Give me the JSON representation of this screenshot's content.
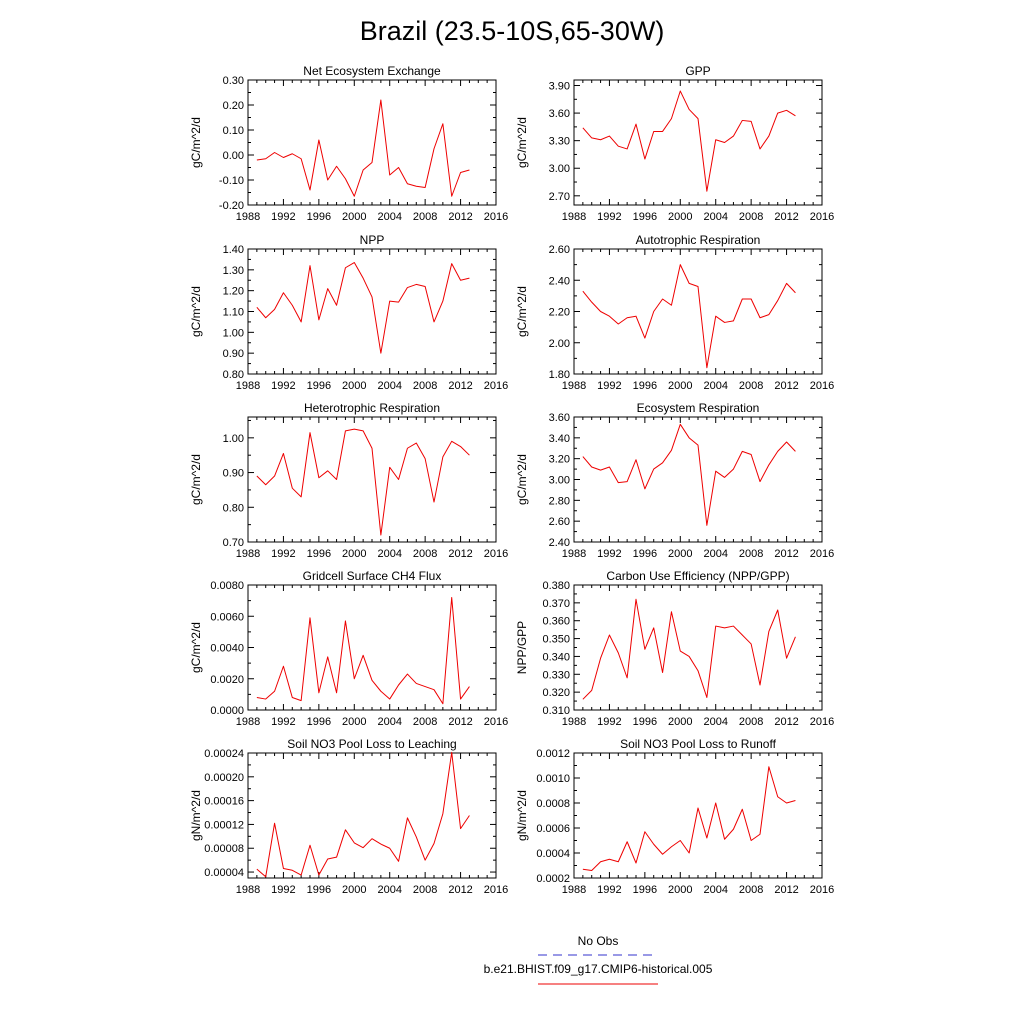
{
  "title": "Brazil (23.5-10S,65-30W)",
  "legend": {
    "entries": [
      {
        "label": "No Obs",
        "color": "#3333cc",
        "dash": "dashed"
      },
      {
        "label": "b.e21.BHIST.f09_g17.CMIP6-historical.005",
        "color": "#ee0000",
        "dash": "solid"
      }
    ]
  },
  "series_color": "#ee0000",
  "chart_data": [
    {
      "type": "line",
      "title": "Net Ecosystem Exchange",
      "ylabel": "gC/m^2/d",
      "xlim": [
        1988,
        2016
      ],
      "xticks": [
        1988,
        1992,
        1996,
        2000,
        2004,
        2008,
        2012,
        2016
      ],
      "ylim": [
        -0.2,
        0.3
      ],
      "yticks": [
        "-0.20",
        "-0.10",
        "0.00",
        "0.10",
        "0.20",
        "0.30"
      ],
      "x": [
        1989,
        1990,
        1991,
        1992,
        1993,
        1994,
        1995,
        1996,
        1997,
        1998,
        1999,
        2000,
        2001,
        2002,
        2003,
        2004,
        2005,
        2006,
        2007,
        2008,
        2009,
        2010,
        2011,
        2012,
        2013
      ],
      "series": [
        {
          "name": "b.e21.BHIST.f09_g17.CMIP6-historical.005",
          "values": [
            -0.02,
            -0.015,
            0.01,
            -0.01,
            0.005,
            -0.015,
            -0.14,
            0.06,
            -0.1,
            -0.045,
            -0.095,
            -0.165,
            -0.06,
            -0.03,
            0.22,
            -0.08,
            -0.05,
            -0.115,
            -0.125,
            -0.13,
            0.025,
            0.125,
            -0.165,
            -0.07,
            -0.06
          ]
        }
      ]
    },
    {
      "type": "line",
      "title": "GPP",
      "ylabel": "gC/m^2/d",
      "xlim": [
        1988,
        2016
      ],
      "xticks": [
        1988,
        1992,
        1996,
        2000,
        2004,
        2008,
        2012,
        2016
      ],
      "ylim": [
        2.6,
        3.96
      ],
      "yticks": [
        "2.70",
        "3.00",
        "3.30",
        "3.60",
        "3.90"
      ],
      "x": [
        1989,
        1990,
        1991,
        1992,
        1993,
        1994,
        1995,
        1996,
        1997,
        1998,
        1999,
        2000,
        2001,
        2002,
        2003,
        2004,
        2005,
        2006,
        2007,
        2008,
        2009,
        2010,
        2011,
        2012,
        2013
      ],
      "series": [
        {
          "name": "b.e21.BHIST.f09_g17.CMIP6-historical.005",
          "values": [
            3.44,
            3.33,
            3.31,
            3.35,
            3.24,
            3.21,
            3.48,
            3.1,
            3.4,
            3.4,
            3.54,
            3.84,
            3.64,
            3.54,
            2.75,
            3.31,
            3.28,
            3.35,
            3.52,
            3.51,
            3.21,
            3.35,
            3.6,
            3.63,
            3.57
          ]
        }
      ]
    },
    {
      "type": "line",
      "title": "NPP",
      "ylabel": "gC/m^2/d",
      "xlim": [
        1988,
        2016
      ],
      "xticks": [
        1988,
        1992,
        1996,
        2000,
        2004,
        2008,
        2012,
        2016
      ],
      "ylim": [
        0.8,
        1.4
      ],
      "yticks": [
        "0.80",
        "0.90",
        "1.00",
        "1.10",
        "1.20",
        "1.30",
        "1.40"
      ],
      "x": [
        1989,
        1990,
        1991,
        1992,
        1993,
        1994,
        1995,
        1996,
        1997,
        1998,
        1999,
        2000,
        2001,
        2002,
        2003,
        2004,
        2005,
        2006,
        2007,
        2008,
        2009,
        2010,
        2011,
        2012,
        2013
      ],
      "series": [
        {
          "name": "b.e21.BHIST.f09_g17.CMIP6-historical.005",
          "values": [
            1.12,
            1.07,
            1.11,
            1.19,
            1.13,
            1.05,
            1.32,
            1.06,
            1.21,
            1.13,
            1.31,
            1.335,
            1.26,
            1.17,
            0.9,
            1.15,
            1.145,
            1.215,
            1.23,
            1.22,
            1.05,
            1.15,
            1.33,
            1.25,
            1.26
          ]
        }
      ]
    },
    {
      "type": "line",
      "title": "Autotrophic Respiration",
      "ylabel": "gC/m^2/d",
      "xlim": [
        1988,
        2016
      ],
      "xticks": [
        1988,
        1992,
        1996,
        2000,
        2004,
        2008,
        2012,
        2016
      ],
      "ylim": [
        1.8,
        2.6
      ],
      "yticks": [
        "1.80",
        "2.00",
        "2.20",
        "2.40",
        "2.60"
      ],
      "x": [
        1989,
        1990,
        1991,
        1992,
        1993,
        1994,
        1995,
        1996,
        1997,
        1998,
        1999,
        2000,
        2001,
        2002,
        2003,
        2004,
        2005,
        2006,
        2007,
        2008,
        2009,
        2010,
        2011,
        2012,
        2013
      ],
      "series": [
        {
          "name": "b.e21.BHIST.f09_g17.CMIP6-historical.005",
          "values": [
            2.33,
            2.26,
            2.2,
            2.17,
            2.12,
            2.16,
            2.17,
            2.03,
            2.2,
            2.28,
            2.24,
            2.5,
            2.38,
            2.36,
            1.84,
            2.17,
            2.13,
            2.14,
            2.28,
            2.28,
            2.16,
            2.18,
            2.27,
            2.38,
            2.32
          ]
        }
      ]
    },
    {
      "type": "line",
      "title": "Heterotrophic Respiration",
      "ylabel": "gC/m^2/d",
      "xlim": [
        1988,
        2016
      ],
      "xticks": [
        1988,
        1992,
        1996,
        2000,
        2004,
        2008,
        2012,
        2016
      ],
      "ylim": [
        0.7,
        1.06
      ],
      "yticks": [
        "0.70",
        "0.80",
        "0.90",
        "1.00"
      ],
      "x": [
        1989,
        1990,
        1991,
        1992,
        1993,
        1994,
        1995,
        1996,
        1997,
        1998,
        1999,
        2000,
        2001,
        2002,
        2003,
        2004,
        2005,
        2006,
        2007,
        2008,
        2009,
        2010,
        2011,
        2012,
        2013
      ],
      "series": [
        {
          "name": "b.e21.BHIST.f09_g17.CMIP6-historical.005",
          "values": [
            0.89,
            0.865,
            0.89,
            0.955,
            0.855,
            0.83,
            1.015,
            0.885,
            0.905,
            0.88,
            1.02,
            1.025,
            1.02,
            0.97,
            0.72,
            0.915,
            0.88,
            0.97,
            0.985,
            0.94,
            0.815,
            0.945,
            0.99,
            0.975,
            0.95
          ]
        }
      ]
    },
    {
      "type": "line",
      "title": "Ecosystem Respiration",
      "ylabel": "gC/m^2/d",
      "xlim": [
        1988,
        2016
      ],
      "xticks": [
        1988,
        1992,
        1996,
        2000,
        2004,
        2008,
        2012,
        2016
      ],
      "ylim": [
        2.4,
        3.6
      ],
      "yticks": [
        "2.40",
        "2.60",
        "2.80",
        "3.00",
        "3.20",
        "3.40",
        "3.60"
      ],
      "x": [
        1989,
        1990,
        1991,
        1992,
        1993,
        1994,
        1995,
        1996,
        1997,
        1998,
        1999,
        2000,
        2001,
        2002,
        2003,
        2004,
        2005,
        2006,
        2007,
        2008,
        2009,
        2010,
        2011,
        2012,
        2013
      ],
      "series": [
        {
          "name": "b.e21.BHIST.f09_g17.CMIP6-historical.005",
          "values": [
            3.22,
            3.12,
            3.09,
            3.12,
            2.97,
            2.98,
            3.19,
            2.91,
            3.1,
            3.16,
            3.28,
            3.53,
            3.4,
            3.33,
            2.56,
            3.08,
            3.02,
            3.1,
            3.27,
            3.24,
            2.98,
            3.14,
            3.27,
            3.36,
            3.27
          ]
        }
      ]
    },
    {
      "type": "line",
      "title": "Gridcell Surface CH4 Flux",
      "ylabel": "gC/m^2/d",
      "xlim": [
        1988,
        2016
      ],
      "xticks": [
        1988,
        1992,
        1996,
        2000,
        2004,
        2008,
        2012,
        2016
      ],
      "ylim": [
        0,
        0.008
      ],
      "yticks": [
        "0.0000",
        "0.0020",
        "0.0040",
        "0.0060",
        "0.0080"
      ],
      "x": [
        1989,
        1990,
        1991,
        1992,
        1993,
        1994,
        1995,
        1996,
        1997,
        1998,
        1999,
        2000,
        2001,
        2002,
        2003,
        2004,
        2005,
        2006,
        2007,
        2008,
        2009,
        2010,
        2011,
        2012,
        2013
      ],
      "series": [
        {
          "name": "b.e21.BHIST.f09_g17.CMIP6-historical.005",
          "values": [
            0.0008,
            0.0007,
            0.0012,
            0.0028,
            0.0008,
            0.0006,
            0.0059,
            0.0011,
            0.0034,
            0.0011,
            0.0057,
            0.002,
            0.0035,
            0.0019,
            0.0012,
            0.0007,
            0.0016,
            0.0023,
            0.0017,
            0.0015,
            0.0013,
            0.0004,
            0.0072,
            0.0007,
            0.0015
          ]
        }
      ]
    },
    {
      "type": "line",
      "title": "Carbon Use Efficiency (NPP/GPP)",
      "ylabel": "NPP/GPP",
      "xlim": [
        1988,
        2016
      ],
      "xticks": [
        1988,
        1992,
        1996,
        2000,
        2004,
        2008,
        2012,
        2016
      ],
      "ylim": [
        0.31,
        0.38
      ],
      "yticks": [
        "0.310",
        "0.320",
        "0.330",
        "0.340",
        "0.350",
        "0.360",
        "0.370",
        "0.380"
      ],
      "x": [
        1989,
        1990,
        1991,
        1992,
        1993,
        1994,
        1995,
        1996,
        1997,
        1998,
        1999,
        2000,
        2001,
        2002,
        2003,
        2004,
        2005,
        2006,
        2007,
        2008,
        2009,
        2010,
        2011,
        2012,
        2013
      ],
      "series": [
        {
          "name": "b.e21.BHIST.f09_g17.CMIP6-historical.005",
          "values": [
            0.316,
            0.321,
            0.339,
            0.352,
            0.342,
            0.328,
            0.372,
            0.344,
            0.356,
            0.331,
            0.365,
            0.343,
            0.34,
            0.332,
            0.317,
            0.357,
            0.356,
            0.357,
            0.352,
            0.347,
            0.324,
            0.354,
            0.366,
            0.339,
            0.351
          ]
        }
      ]
    },
    {
      "type": "line",
      "title": "Soil NO3 Pool Loss to Leaching",
      "ylabel": "gN/m^2/d",
      "xlim": [
        1988,
        2016
      ],
      "xticks": [
        1988,
        1992,
        1996,
        2000,
        2004,
        2008,
        2012,
        2016
      ],
      "ylim": [
        3e-05,
        0.00024
      ],
      "yticks": [
        "0.00004",
        "0.00008",
        "0.00012",
        "0.00016",
        "0.00020",
        "0.00024"
      ],
      "x": [
        1989,
        1990,
        1991,
        1992,
        1993,
        1994,
        1995,
        1996,
        1997,
        1998,
        1999,
        2000,
        2001,
        2002,
        2003,
        2004,
        2005,
        2006,
        2007,
        2008,
        2009,
        2010,
        2011,
        2012,
        2013
      ],
      "series": [
        {
          "name": "b.e21.BHIST.f09_g17.CMIP6-historical.005",
          "values": [
            4.5e-05,
            3.2e-05,
            0.000122,
            4.6e-05,
            4.3e-05,
            3.5e-05,
            8.5e-05,
            3.5e-05,
            6.2e-05,
            6.5e-05,
            0.000111,
            8.9e-05,
            8.1e-05,
            9.6e-05,
            8.7e-05,
            8e-05,
            5.8e-05,
            0.000131,
            9.9e-05,
            6e-05,
            8.8e-05,
            0.000138,
            0.000241,
            0.000113,
            0.000135
          ]
        }
      ]
    },
    {
      "type": "line",
      "title": "Soil NO3 Pool Loss to Runoff",
      "ylabel": "gN/m^2/d",
      "xlim": [
        1988,
        2016
      ],
      "xticks": [
        1988,
        1992,
        1996,
        2000,
        2004,
        2008,
        2012,
        2016
      ],
      "ylim": [
        0.0002,
        0.0012
      ],
      "yticks": [
        "0.0002",
        "0.0004",
        "0.0006",
        "0.0008",
        "0.0010",
        "0.0012"
      ],
      "x": [
        1989,
        1990,
        1991,
        1992,
        1993,
        1994,
        1995,
        1996,
        1997,
        1998,
        1999,
        2000,
        2001,
        2002,
        2003,
        2004,
        2005,
        2006,
        2007,
        2008,
        2009,
        2010,
        2011,
        2012,
        2013
      ],
      "series": [
        {
          "name": "b.e21.BHIST.f09_g17.CMIP6-historical.005",
          "values": [
            0.00027,
            0.00026,
            0.00033,
            0.00035,
            0.00033,
            0.00049,
            0.00032,
            0.00057,
            0.00047,
            0.00039,
            0.00045,
            0.0005,
            0.0004,
            0.00076,
            0.00052,
            0.0008,
            0.00051,
            0.00059,
            0.00075,
            0.0005,
            0.00055,
            0.00109,
            0.00085,
            0.0008,
            0.00082
          ]
        }
      ]
    }
  ]
}
